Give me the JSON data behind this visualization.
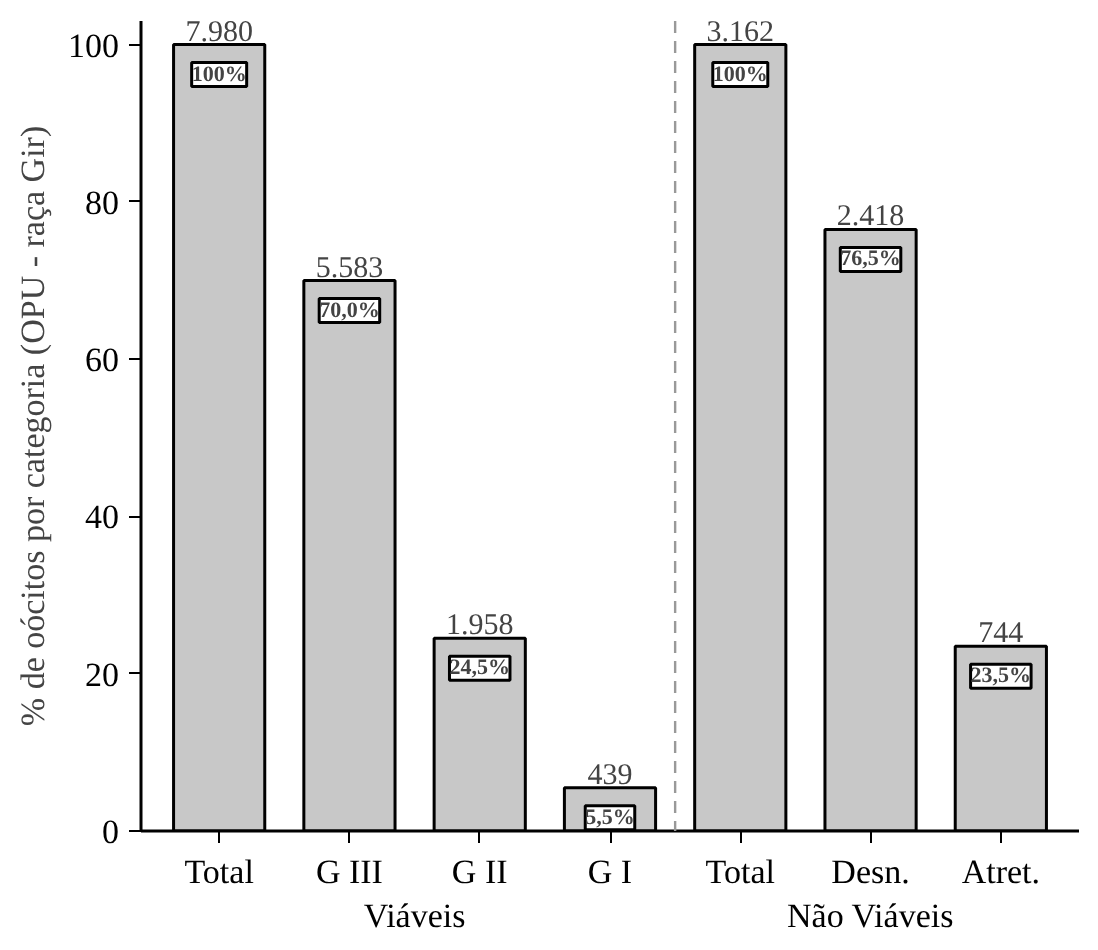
{
  "chart_data": {
    "type": "bar",
    "ylabel": "% de oócitos por categoria (OPU - raça Gir)",
    "categories": [
      "Total",
      "G III",
      "G II",
      "G I",
      "Total",
      "Desn.",
      "Atret."
    ],
    "values": [
      100,
      70.0,
      24.5,
      5.5,
      100,
      76.5,
      23.5
    ],
    "color": "#c8c8c8",
    "value_labels": [
      "100%",
      "70,0%",
      "24,5%",
      "5,5%",
      "100%",
      "76,5%",
      "23,5%"
    ],
    "ylim": [
      0,
      103
    ],
    "yticks": [
      0,
      20,
      40,
      60,
      80,
      100
    ],
    "annotations": [
      "Viáveis",
      "Não Viáveis",
      "7.980",
      "5.583",
      "1.958",
      "439",
      "3.162",
      "2.418",
      "744"
    ],
    "grid": false
  }
}
